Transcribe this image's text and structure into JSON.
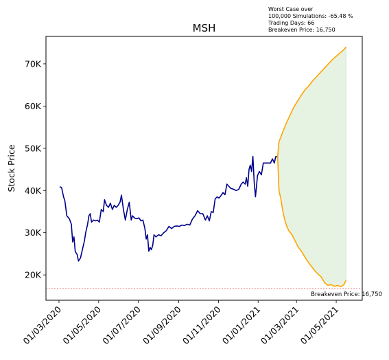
{
  "chart_data": {
    "type": "line",
    "title": "MSH",
    "xlabel": "",
    "ylabel": "Stock Price",
    "x_tick_labels": [
      "01/03/2020",
      "01/05/2020",
      "01/07/2020",
      "01/09/2020",
      "01/11/2020",
      "01/01/2021",
      "01/03/2021",
      "01/05/2021"
    ],
    "x_tick_dates": [
      "2020-03-01",
      "2020-05-01",
      "2020-07-01",
      "2020-09-01",
      "2020-11-01",
      "2021-01-01",
      "2021-03-01",
      "2021-05-01"
    ],
    "y_ticks": [
      20000,
      30000,
      40000,
      50000,
      60000,
      70000
    ],
    "y_tick_labels": [
      "20K",
      "30K",
      "40K",
      "50K",
      "60K",
      "70K"
    ],
    "xlim": [
      "2020-02-10",
      "2021-06-10"
    ],
    "ylim": [
      14000,
      76500
    ],
    "grid": false,
    "colors": {
      "historical": "#00008b",
      "simulation_bounds": "#ffa500",
      "fill": "#e6f2e2",
      "fill_edge": "#c8e2c8",
      "breakeven_line": "#d62728"
    },
    "annotation": {
      "line1": "Worst Case over",
      "line2": "100,000 Simulations: -65.48 %",
      "line3": "Trading Days: 66",
      "line4": "Breakeven Price: 16,750"
    },
    "breakeven": {
      "value": 16750,
      "label": "Breakeven Price: 16,750"
    },
    "series": [
      {
        "values": [
          [
            "2020-03-02",
            40900
          ],
          [
            "2020-03-05",
            40700
          ],
          [
            "2020-03-08",
            38500
          ],
          [
            "2020-03-10",
            37600
          ],
          [
            "2020-03-13",
            34000
          ],
          [
            "2020-03-17",
            33300
          ],
          [
            "2020-03-20",
            32000
          ],
          [
            "2020-03-22",
            27800
          ],
          [
            "2020-03-24",
            29000
          ],
          [
            "2020-03-26",
            25500
          ],
          [
            "2020-03-29",
            24800
          ],
          [
            "2020-03-31",
            23300
          ],
          [
            "2020-04-03",
            24000
          ],
          [
            "2020-04-06",
            26000
          ],
          [
            "2020-04-09",
            28000
          ],
          [
            "2020-04-11",
            30000
          ],
          [
            "2020-04-14",
            32000
          ],
          [
            "2020-04-16",
            34000
          ],
          [
            "2020-04-18",
            34500
          ],
          [
            "2020-04-20",
            32500
          ],
          [
            "2020-04-23",
            33000
          ],
          [
            "2020-04-26",
            32800
          ],
          [
            "2020-04-29",
            33000
          ],
          [
            "2020-05-02",
            32500
          ],
          [
            "2020-05-05",
            35500
          ],
          [
            "2020-05-08",
            35000
          ],
          [
            "2020-05-10",
            37800
          ],
          [
            "2020-05-13",
            36500
          ],
          [
            "2020-05-16",
            36000
          ],
          [
            "2020-05-19",
            37000
          ],
          [
            "2020-05-22",
            35500
          ],
          [
            "2020-05-25",
            36500
          ],
          [
            "2020-05-28",
            36000
          ],
          [
            "2020-05-31",
            36500
          ],
          [
            "2020-06-03",
            37300
          ],
          [
            "2020-06-05",
            38900
          ],
          [
            "2020-06-08",
            35500
          ],
          [
            "2020-06-11",
            33000
          ],
          [
            "2020-06-14",
            35500
          ],
          [
            "2020-06-17",
            37200
          ],
          [
            "2020-06-20",
            33000
          ],
          [
            "2020-06-22",
            34000
          ],
          [
            "2020-06-25",
            33500
          ],
          [
            "2020-06-28",
            33300
          ],
          [
            "2020-07-02",
            33500
          ],
          [
            "2020-07-05",
            32800
          ],
          [
            "2020-07-08",
            33000
          ],
          [
            "2020-07-11",
            31000
          ],
          [
            "2020-07-13",
            28500
          ],
          [
            "2020-07-15",
            29500
          ],
          [
            "2020-07-17",
            25600
          ],
          [
            "2020-07-19",
            26500
          ],
          [
            "2020-07-21",
            26000
          ],
          [
            "2020-07-23",
            27000
          ],
          [
            "2020-07-25",
            29500
          ],
          [
            "2020-07-28",
            29000
          ],
          [
            "2020-08-01",
            29500
          ],
          [
            "2020-08-05",
            29300
          ],
          [
            "2020-08-09",
            30000
          ],
          [
            "2020-08-13",
            30500
          ],
          [
            "2020-08-17",
            31500
          ],
          [
            "2020-08-21",
            31000
          ],
          [
            "2020-08-25",
            31500
          ],
          [
            "2020-08-29",
            31600
          ],
          [
            "2020-09-02",
            31500
          ],
          [
            "2020-09-06",
            31800
          ],
          [
            "2020-09-10",
            31700
          ],
          [
            "2020-09-14",
            32000
          ],
          [
            "2020-09-18",
            31800
          ],
          [
            "2020-09-22",
            33200
          ],
          [
            "2020-09-26",
            34000
          ],
          [
            "2020-09-30",
            35200
          ],
          [
            "2020-10-04",
            34500
          ],
          [
            "2020-10-08",
            34500
          ],
          [
            "2020-10-12",
            33000
          ],
          [
            "2020-10-15",
            34000
          ],
          [
            "2020-10-18",
            32800
          ],
          [
            "2020-10-21",
            35000
          ],
          [
            "2020-10-24",
            34800
          ],
          [
            "2020-10-27",
            38000
          ],
          [
            "2020-10-30",
            38500
          ],
          [
            "2020-11-02",
            38200
          ],
          [
            "2020-11-05",
            38800
          ],
          [
            "2020-11-08",
            39500
          ],
          [
            "2020-11-11",
            39000
          ],
          [
            "2020-11-14",
            41500
          ],
          [
            "2020-11-17",
            41000
          ],
          [
            "2020-11-20",
            40500
          ],
          [
            "2020-11-24",
            40300
          ],
          [
            "2020-11-28",
            40000
          ],
          [
            "2020-12-02",
            40200
          ],
          [
            "2020-12-06",
            41500
          ],
          [
            "2020-12-09",
            42000
          ],
          [
            "2020-12-12",
            41500
          ],
          [
            "2020-12-14",
            43000
          ],
          [
            "2020-12-16",
            41000
          ],
          [
            "2020-12-18",
            45000
          ],
          [
            "2020-12-20",
            46000
          ],
          [
            "2020-12-22",
            44500
          ],
          [
            "2020-12-24",
            48100
          ],
          [
            "2020-12-26",
            42000
          ],
          [
            "2020-12-28",
            38500
          ],
          [
            "2020-12-31",
            43500
          ],
          [
            "2021-01-03",
            44500
          ],
          [
            "2021-01-06",
            43700
          ],
          [
            "2021-01-09",
            46500
          ],
          [
            "2021-01-14",
            46500
          ],
          [
            "2021-01-20",
            46500
          ],
          [
            "2021-01-23",
            47500
          ],
          [
            "2021-01-26",
            46500
          ],
          [
            "2021-01-28",
            48000
          ],
          [
            "2021-01-31",
            48000
          ]
        ]
      },
      {
        "values": [
          [
            "2021-01-31",
            48000
          ],
          [
            "2021-02-02",
            51500
          ],
          [
            "2021-02-07",
            53500
          ],
          [
            "2021-02-12",
            55500
          ],
          [
            "2021-02-18",
            57500
          ],
          [
            "2021-02-24",
            59500
          ],
          [
            "2021-03-02",
            61000
          ],
          [
            "2021-03-08",
            62500
          ],
          [
            "2021-03-14",
            63800
          ],
          [
            "2021-03-20",
            64800
          ],
          [
            "2021-03-26",
            66000
          ],
          [
            "2021-04-01",
            67000
          ],
          [
            "2021-04-07",
            68000
          ],
          [
            "2021-04-13",
            69000
          ],
          [
            "2021-04-19",
            70000
          ],
          [
            "2021-04-25",
            71000
          ],
          [
            "2021-05-01",
            71800
          ],
          [
            "2021-05-07",
            72600
          ],
          [
            "2021-05-13",
            73400
          ],
          [
            "2021-05-16",
            74000
          ]
        ]
      },
      {
        "values": [
          [
            "2021-01-31",
            48000
          ],
          [
            "2021-02-02",
            40000
          ],
          [
            "2021-02-05",
            38000
          ],
          [
            "2021-02-08",
            35000
          ],
          [
            "2021-02-11",
            33000
          ],
          [
            "2021-02-14",
            31500
          ],
          [
            "2021-02-17",
            30500
          ],
          [
            "2021-02-22",
            29500
          ],
          [
            "2021-02-27",
            28000
          ],
          [
            "2021-03-04",
            26500
          ],
          [
            "2021-03-09",
            25500
          ],
          [
            "2021-03-14",
            24200
          ],
          [
            "2021-03-19",
            23000
          ],
          [
            "2021-03-24",
            22000
          ],
          [
            "2021-03-29",
            21000
          ],
          [
            "2021-04-03",
            20200
          ],
          [
            "2021-04-08",
            19500
          ],
          [
            "2021-04-13",
            18200
          ],
          [
            "2021-04-18",
            17500
          ],
          [
            "2021-04-23",
            17700
          ],
          [
            "2021-04-28",
            17300
          ],
          [
            "2021-05-03",
            17500
          ],
          [
            "2021-05-08",
            17200
          ],
          [
            "2021-05-13",
            17700
          ],
          [
            "2021-05-16",
            18700
          ]
        ]
      }
    ]
  }
}
